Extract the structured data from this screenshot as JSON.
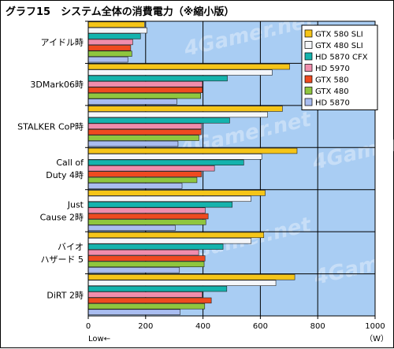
{
  "chart_data": {
    "type": "bar",
    "orientation": "horizontal",
    "title": "グラフ15　システム全体の消費電力（※縮小版）",
    "categories": [
      [
        "アイドル時"
      ],
      [
        "3DMark06時"
      ],
      [
        "STALKER CoP時"
      ],
      [
        "Call of",
        "Duty 4時"
      ],
      [
        "Just",
        "Cause 2時"
      ],
      [
        "バイオ",
        "ハザード 5"
      ],
      [
        "DiRT 2時"
      ]
    ],
    "series": [
      {
        "name": "GTX 580 SLI",
        "color": "#f5c518",
        "values": [
          196,
          702,
          677,
          728,
          617,
          612,
          720
        ]
      },
      {
        "name": "GTX 480 SLI",
        "color": "#f4f6f9",
        "values": [
          205,
          641,
          625,
          605,
          567,
          568,
          654
        ]
      },
      {
        "name": "HD 5870 CFX",
        "color": "#14b3ad",
        "values": [
          182,
          485,
          493,
          542,
          502,
          470,
          483
        ]
      },
      {
        "name": "HD 5970",
        "color": "#f08dac",
        "values": [
          155,
          398,
          395,
          440,
          408,
          385,
          397
        ]
      },
      {
        "name": "GTX 580",
        "color": "#ef4a20",
        "values": [
          148,
          398,
          394,
          395,
          418,
          407,
          429
        ]
      },
      {
        "name": "GTX 480",
        "color": "#8fc63f",
        "values": [
          152,
          392,
          386,
          379,
          410,
          404,
          406
        ]
      },
      {
        "name": "HD 5870",
        "color": "#a9bdf0",
        "values": [
          138,
          309,
          313,
          327,
          303,
          318,
          320
        ]
      }
    ],
    "xlim": [
      0,
      1000
    ],
    "xticks": [
      0,
      200,
      400,
      600,
      800,
      1000
    ],
    "x_unit": "（W）",
    "x_direction_note": "Low←",
    "watermark": "4Gamer.net",
    "legend_position": "top-right",
    "grid": true,
    "plot_background": "#a9cdf3",
    "gridline_color": "#000000"
  }
}
